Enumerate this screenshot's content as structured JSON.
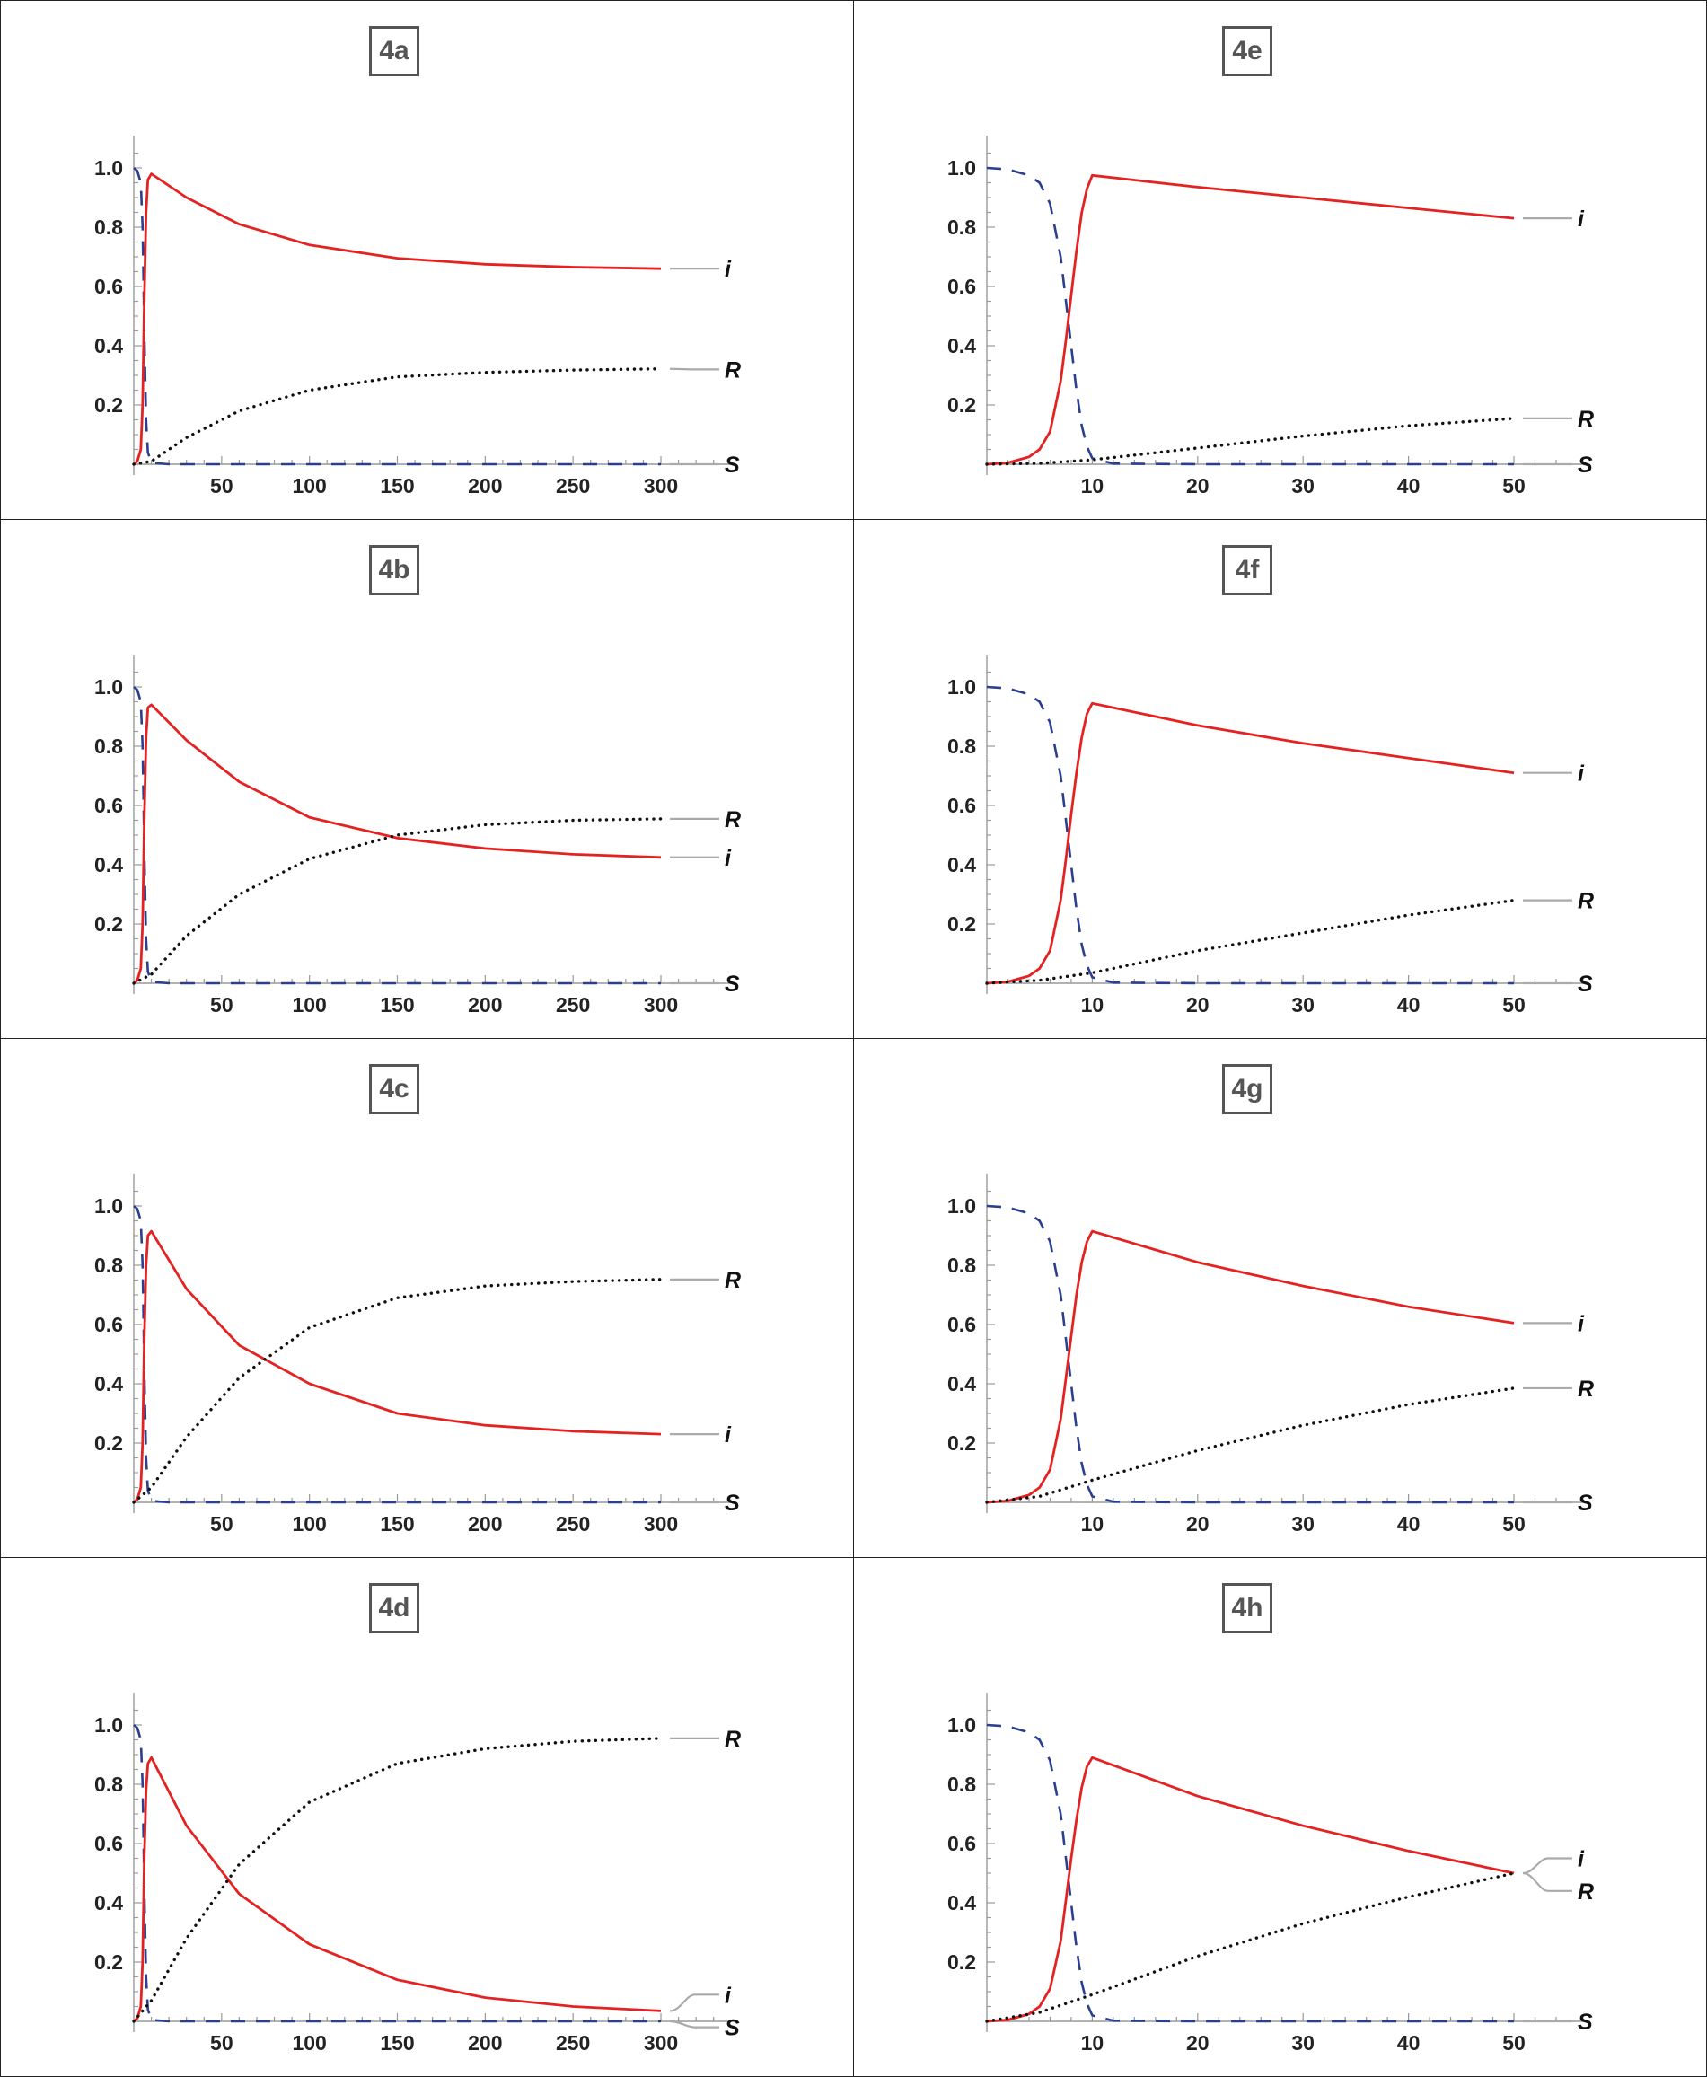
{
  "chart_data": [
    {
      "panel": "4a",
      "type": "line",
      "xlim": [
        0,
        330
      ],
      "ylim": [
        0,
        1.1
      ],
      "xticks": [
        50,
        100,
        150,
        200,
        250,
        300
      ],
      "yticks": [
        0.2,
        0.4,
        0.6,
        0.8,
        1.0
      ],
      "series": [
        {
          "name": "S",
          "style": "dashed",
          "color": "#2a3f8f",
          "x": [
            0,
            2,
            4,
            5,
            6,
            7,
            8,
            10,
            20,
            50,
            100,
            150,
            200,
            250,
            300
          ],
          "y": [
            1.0,
            0.99,
            0.95,
            0.8,
            0.45,
            0.15,
            0.04,
            0.005,
            0.0,
            0.0,
            0.0,
            0.0,
            0.0,
            0.0,
            0.0
          ]
        },
        {
          "name": "i",
          "style": "solid",
          "color": "#e52222",
          "x": [
            0,
            2,
            4,
            5,
            6,
            7,
            8,
            10,
            30,
            60,
            100,
            150,
            200,
            250,
            300
          ],
          "y": [
            0.0,
            0.01,
            0.05,
            0.2,
            0.55,
            0.85,
            0.96,
            0.98,
            0.9,
            0.81,
            0.74,
            0.695,
            0.675,
            0.665,
            0.66
          ]
        },
        {
          "name": "R",
          "style": "dotted",
          "color": "#111111",
          "x": [
            0,
            10,
            30,
            60,
            100,
            150,
            200,
            250,
            300
          ],
          "y": [
            0.0,
            0.01,
            0.09,
            0.18,
            0.25,
            0.295,
            0.31,
            0.318,
            0.322
          ]
        }
      ],
      "labels": [
        {
          "name": "S",
          "text": "S",
          "y": 0.0
        },
        {
          "name": "R",
          "text": "R",
          "y": 0.32
        },
        {
          "name": "i",
          "text": "i",
          "y": 0.66
        }
      ]
    },
    {
      "panel": "4b",
      "type": "line",
      "xlim": [
        0,
        330
      ],
      "ylim": [
        0,
        1.1
      ],
      "xticks": [
        50,
        100,
        150,
        200,
        250,
        300
      ],
      "yticks": [
        0.2,
        0.4,
        0.6,
        0.8,
        1.0
      ],
      "series": [
        {
          "name": "S",
          "style": "dashed",
          "color": "#2a3f8f",
          "x": [
            0,
            2,
            4,
            5,
            6,
            7,
            8,
            10,
            20,
            50,
            100,
            150,
            200,
            250,
            300
          ],
          "y": [
            1.0,
            0.99,
            0.95,
            0.8,
            0.45,
            0.15,
            0.04,
            0.005,
            0.0,
            0.0,
            0.0,
            0.0,
            0.0,
            0.0,
            0.0
          ]
        },
        {
          "name": "i",
          "style": "solid",
          "color": "#e52222",
          "x": [
            0,
            2,
            4,
            5,
            6,
            7,
            8,
            10,
            30,
            60,
            100,
            150,
            200,
            250,
            300
          ],
          "y": [
            0.0,
            0.01,
            0.05,
            0.2,
            0.55,
            0.83,
            0.93,
            0.94,
            0.82,
            0.68,
            0.56,
            0.49,
            0.455,
            0.435,
            0.425
          ]
        },
        {
          "name": "R",
          "style": "dotted",
          "color": "#111111",
          "x": [
            0,
            10,
            30,
            60,
            100,
            150,
            200,
            250,
            300
          ],
          "y": [
            0.0,
            0.03,
            0.16,
            0.3,
            0.42,
            0.5,
            0.535,
            0.55,
            0.555
          ]
        }
      ],
      "labels": [
        {
          "name": "S",
          "text": "S",
          "y": 0.0
        },
        {
          "name": "i",
          "text": "i",
          "y": 0.425
        },
        {
          "name": "R",
          "text": "R",
          "y": 0.555
        }
      ]
    },
    {
      "panel": "4c",
      "type": "line",
      "xlim": [
        0,
        330
      ],
      "ylim": [
        0,
        1.1
      ],
      "xticks": [
        50,
        100,
        150,
        200,
        250,
        300
      ],
      "yticks": [
        0.2,
        0.4,
        0.6,
        0.8,
        1.0
      ],
      "series": [
        {
          "name": "S",
          "style": "dashed",
          "color": "#2a3f8f",
          "x": [
            0,
            2,
            4,
            5,
            6,
            7,
            8,
            10,
            20,
            50,
            100,
            150,
            200,
            250,
            300
          ],
          "y": [
            1.0,
            0.99,
            0.95,
            0.8,
            0.45,
            0.15,
            0.04,
            0.005,
            0.0,
            0.0,
            0.0,
            0.0,
            0.0,
            0.0,
            0.0
          ]
        },
        {
          "name": "i",
          "style": "solid",
          "color": "#e52222",
          "x": [
            0,
            2,
            4,
            5,
            6,
            7,
            8,
            10,
            30,
            60,
            100,
            150,
            200,
            250,
            300
          ],
          "y": [
            0.0,
            0.01,
            0.05,
            0.2,
            0.55,
            0.8,
            0.9,
            0.915,
            0.72,
            0.53,
            0.4,
            0.3,
            0.26,
            0.24,
            0.23
          ]
        },
        {
          "name": "R",
          "style": "dotted",
          "color": "#111111",
          "x": [
            0,
            10,
            30,
            60,
            100,
            150,
            200,
            250,
            300
          ],
          "y": [
            0.0,
            0.05,
            0.22,
            0.42,
            0.59,
            0.69,
            0.73,
            0.745,
            0.752
          ]
        }
      ],
      "labels": [
        {
          "name": "S",
          "text": "S",
          "y": 0.0
        },
        {
          "name": "i",
          "text": "i",
          "y": 0.23
        },
        {
          "name": "R",
          "text": "R",
          "y": 0.752
        }
      ]
    },
    {
      "panel": "4d",
      "type": "line",
      "xlim": [
        0,
        330
      ],
      "ylim": [
        0,
        1.1
      ],
      "xticks": [
        50,
        100,
        150,
        200,
        250,
        300
      ],
      "yticks": [
        0.2,
        0.4,
        0.6,
        0.8,
        1.0
      ],
      "series": [
        {
          "name": "S",
          "style": "dashed",
          "color": "#2a3f8f",
          "x": [
            0,
            2,
            4,
            5,
            6,
            7,
            8,
            10,
            20,
            50,
            100,
            150,
            200,
            250,
            300
          ],
          "y": [
            1.0,
            0.99,
            0.95,
            0.8,
            0.45,
            0.15,
            0.04,
            0.005,
            0.0,
            0.0,
            0.0,
            0.0,
            0.0,
            0.0,
            0.0
          ]
        },
        {
          "name": "i",
          "style": "solid",
          "color": "#e52222",
          "x": [
            0,
            2,
            4,
            5,
            6,
            7,
            8,
            10,
            30,
            60,
            100,
            150,
            200,
            250,
            300
          ],
          "y": [
            0.0,
            0.01,
            0.05,
            0.2,
            0.55,
            0.78,
            0.87,
            0.89,
            0.66,
            0.43,
            0.26,
            0.14,
            0.08,
            0.05,
            0.035
          ]
        },
        {
          "name": "R",
          "style": "dotted",
          "color": "#111111",
          "x": [
            0,
            10,
            30,
            60,
            100,
            150,
            200,
            250,
            300
          ],
          "y": [
            0.0,
            0.07,
            0.28,
            0.53,
            0.74,
            0.87,
            0.92,
            0.945,
            0.955
          ]
        }
      ],
      "labels": [
        {
          "name": "S",
          "text": "S",
          "y": -0.02
        },
        {
          "name": "i",
          "text": "i",
          "y": 0.09
        },
        {
          "name": "R",
          "text": "R",
          "y": 0.955
        }
      ]
    },
    {
      "panel": "4e",
      "type": "line",
      "xlim": [
        0,
        55
      ],
      "ylim": [
        0,
        1.1
      ],
      "xticks": [
        10,
        20,
        30,
        40,
        50
      ],
      "yticks": [
        0.2,
        0.4,
        0.6,
        0.8,
        1.0
      ],
      "series": [
        {
          "name": "S",
          "style": "dashed",
          "color": "#2a3f8f",
          "x": [
            0,
            2,
            4,
            5,
            6,
            7,
            7.5,
            8,
            8.5,
            9,
            9.5,
            10,
            12,
            20,
            30,
            40,
            50
          ],
          "y": [
            1.0,
            0.995,
            0.975,
            0.95,
            0.88,
            0.7,
            0.55,
            0.4,
            0.25,
            0.13,
            0.06,
            0.02,
            0.002,
            0.0,
            0.0,
            0.0,
            0.0
          ]
        },
        {
          "name": "i",
          "style": "solid",
          "color": "#e52222",
          "x": [
            0,
            2,
            4,
            5,
            6,
            7,
            7.5,
            8,
            8.5,
            9,
            9.5,
            10,
            20,
            30,
            40,
            50
          ],
          "y": [
            0.0,
            0.005,
            0.025,
            0.05,
            0.11,
            0.28,
            0.42,
            0.57,
            0.72,
            0.85,
            0.93,
            0.975,
            0.935,
            0.9,
            0.865,
            0.83
          ]
        },
        {
          "name": "R",
          "style": "dotted",
          "color": "#111111",
          "x": [
            0,
            5,
            10,
            20,
            30,
            40,
            50
          ],
          "y": [
            0.0,
            0.003,
            0.015,
            0.055,
            0.095,
            0.13,
            0.155
          ]
        }
      ],
      "labels": [
        {
          "name": "S",
          "text": "S",
          "y": 0.0
        },
        {
          "name": "R",
          "text": "R",
          "y": 0.155
        },
        {
          "name": "i",
          "text": "i",
          "y": 0.83
        }
      ]
    },
    {
      "panel": "4f",
      "type": "line",
      "xlim": [
        0,
        55
      ],
      "ylim": [
        0,
        1.1
      ],
      "xticks": [
        10,
        20,
        30,
        40,
        50
      ],
      "yticks": [
        0.2,
        0.4,
        0.6,
        0.8,
        1.0
      ],
      "series": [
        {
          "name": "S",
          "style": "dashed",
          "color": "#2a3f8f",
          "x": [
            0,
            2,
            4,
            5,
            6,
            7,
            7.5,
            8,
            8.5,
            9,
            9.5,
            10,
            12,
            20,
            30,
            40,
            50
          ],
          "y": [
            1.0,
            0.995,
            0.975,
            0.95,
            0.88,
            0.7,
            0.55,
            0.4,
            0.25,
            0.13,
            0.06,
            0.02,
            0.002,
            0.0,
            0.0,
            0.0,
            0.0
          ]
        },
        {
          "name": "i",
          "style": "solid",
          "color": "#e52222",
          "x": [
            0,
            2,
            4,
            5,
            6,
            7,
            7.5,
            8,
            8.5,
            9,
            9.5,
            10,
            20,
            30,
            40,
            50
          ],
          "y": [
            0.0,
            0.005,
            0.025,
            0.05,
            0.11,
            0.28,
            0.42,
            0.57,
            0.71,
            0.83,
            0.91,
            0.945,
            0.87,
            0.81,
            0.76,
            0.71
          ]
        },
        {
          "name": "R",
          "style": "dotted",
          "color": "#111111",
          "x": [
            0,
            5,
            10,
            20,
            30,
            40,
            50
          ],
          "y": [
            0.0,
            0.01,
            0.035,
            0.11,
            0.17,
            0.23,
            0.28
          ]
        }
      ],
      "labels": [
        {
          "name": "S",
          "text": "S",
          "y": 0.0
        },
        {
          "name": "R",
          "text": "R",
          "y": 0.28
        },
        {
          "name": "i",
          "text": "i",
          "y": 0.71
        }
      ]
    },
    {
      "panel": "4g",
      "type": "line",
      "xlim": [
        0,
        55
      ],
      "ylim": [
        0,
        1.1
      ],
      "xticks": [
        10,
        20,
        30,
        40,
        50
      ],
      "yticks": [
        0.2,
        0.4,
        0.6,
        0.8,
        1.0
      ],
      "series": [
        {
          "name": "S",
          "style": "dashed",
          "color": "#2a3f8f",
          "x": [
            0,
            2,
            4,
            5,
            6,
            7,
            7.5,
            8,
            8.5,
            9,
            9.5,
            10,
            12,
            20,
            30,
            40,
            50
          ],
          "y": [
            1.0,
            0.995,
            0.975,
            0.95,
            0.88,
            0.7,
            0.55,
            0.4,
            0.25,
            0.13,
            0.06,
            0.02,
            0.002,
            0.0,
            0.0,
            0.0,
            0.0
          ]
        },
        {
          "name": "i",
          "style": "solid",
          "color": "#e52222",
          "x": [
            0,
            2,
            4,
            5,
            6,
            7,
            7.5,
            8,
            8.5,
            9,
            9.5,
            10,
            20,
            30,
            40,
            50
          ],
          "y": [
            0.0,
            0.005,
            0.025,
            0.05,
            0.11,
            0.28,
            0.42,
            0.56,
            0.7,
            0.81,
            0.88,
            0.915,
            0.81,
            0.73,
            0.66,
            0.605
          ]
        },
        {
          "name": "R",
          "style": "dotted",
          "color": "#111111",
          "x": [
            0,
            5,
            10,
            20,
            30,
            40,
            50
          ],
          "y": [
            0.0,
            0.02,
            0.075,
            0.175,
            0.26,
            0.33,
            0.385
          ]
        }
      ],
      "labels": [
        {
          "name": "S",
          "text": "S",
          "y": 0.0
        },
        {
          "name": "R",
          "text": "R",
          "y": 0.385
        },
        {
          "name": "i",
          "text": "i",
          "y": 0.605
        }
      ]
    },
    {
      "panel": "4h",
      "type": "line",
      "xlim": [
        0,
        55
      ],
      "ylim": [
        0,
        1.1
      ],
      "xticks": [
        10,
        20,
        30,
        40,
        50
      ],
      "yticks": [
        0.2,
        0.4,
        0.6,
        0.8,
        1.0
      ],
      "series": [
        {
          "name": "S",
          "style": "dashed",
          "color": "#2a3f8f",
          "x": [
            0,
            2,
            4,
            5,
            6,
            7,
            7.5,
            8,
            8.5,
            9,
            9.5,
            10,
            12,
            20,
            30,
            40,
            50
          ],
          "y": [
            1.0,
            0.995,
            0.975,
            0.95,
            0.88,
            0.7,
            0.55,
            0.4,
            0.25,
            0.13,
            0.06,
            0.02,
            0.002,
            0.0,
            0.0,
            0.0,
            0.0
          ]
        },
        {
          "name": "i",
          "style": "solid",
          "color": "#e52222",
          "x": [
            0,
            2,
            4,
            5,
            6,
            7,
            7.5,
            8,
            8.5,
            9,
            9.5,
            10,
            20,
            30,
            40,
            50
          ],
          "y": [
            0.0,
            0.005,
            0.025,
            0.05,
            0.11,
            0.27,
            0.41,
            0.55,
            0.68,
            0.79,
            0.86,
            0.89,
            0.76,
            0.66,
            0.575,
            0.5
          ]
        },
        {
          "name": "R",
          "style": "dotted",
          "color": "#111111",
          "x": [
            0,
            5,
            10,
            20,
            30,
            40,
            50
          ],
          "y": [
            0.0,
            0.03,
            0.09,
            0.22,
            0.33,
            0.42,
            0.5
          ]
        }
      ],
      "labels": [
        {
          "name": "S",
          "text": "S",
          "y": 0.0
        },
        {
          "name": "i",
          "text": "i",
          "y": 0.55
        },
        {
          "name": "R",
          "text": "R",
          "y": 0.44
        }
      ]
    }
  ],
  "colors": {
    "s_curve": "#2a3f8f",
    "i_curve": "#e52222",
    "r_curve": "#111111",
    "label_leader": "#aaaaaa",
    "badge_border": "#555555"
  }
}
